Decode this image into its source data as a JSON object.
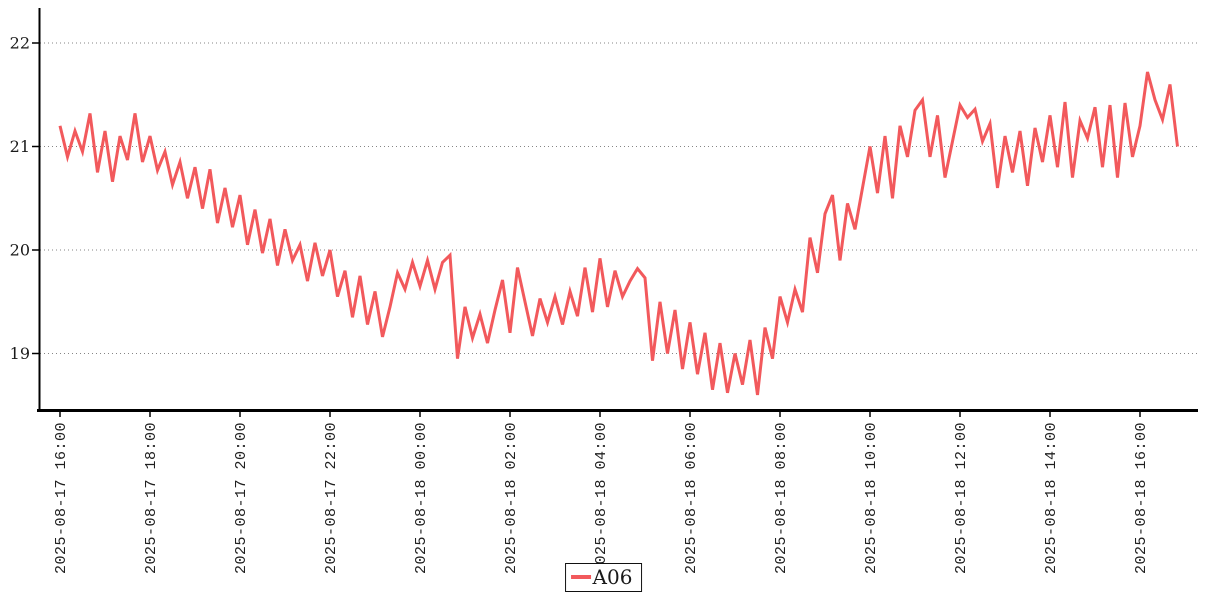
{
  "colors": {
    "line": "#f2595c",
    "grid": "#858585",
    "axis": "#000000",
    "text": "#1a1a1a",
    "background": "#ffffff",
    "legend_border": "#111111"
  },
  "legend": {
    "position": "bottom-center",
    "label": "A06"
  },
  "chart_data": {
    "type": "line",
    "title": "",
    "xlabel": "",
    "ylabel": "",
    "grid": "horizontal-dotted",
    "legend_position": "bottom-center",
    "x_start": "2025-08-17 16:00",
    "x_end": "2025-08-18 16:50",
    "x_interval_minutes": 10,
    "xtick_labels": [
      "2025-08-17 16:00",
      "2025-08-17 18:00",
      "2025-08-17 20:00",
      "2025-08-17 22:00",
      "2025-08-18 00:00",
      "2025-08-18 02:00",
      "2025-08-18 04:00",
      "2025-08-18 06:00",
      "2025-08-18 08:00",
      "2025-08-18 10:00",
      "2025-08-18 12:00",
      "2025-08-18 14:00",
      "2025-08-18 16:00"
    ],
    "yticks": [
      22,
      21,
      20,
      19
    ],
    "ylim": [
      18.44,
      22.35
    ],
    "series": [
      {
        "name": "A06",
        "color": "#f2595c",
        "values": [
          21.2,
          20.9,
          21.15,
          20.95,
          21.32,
          20.75,
          21.15,
          20.66,
          21.1,
          20.87,
          21.32,
          20.85,
          21.1,
          20.77,
          20.95,
          20.63,
          20.85,
          20.5,
          20.8,
          20.4,
          20.78,
          20.26,
          20.6,
          20.22,
          20.53,
          20.05,
          20.39,
          19.97,
          20.3,
          19.85,
          20.2,
          19.9,
          20.05,
          19.7,
          20.07,
          19.75,
          20.0,
          19.55,
          19.8,
          19.35,
          19.75,
          19.28,
          19.6,
          19.16,
          19.45,
          19.78,
          19.62,
          19.88,
          19.65,
          19.9,
          19.62,
          19.88,
          19.95,
          18.95,
          19.45,
          19.15,
          19.38,
          19.1,
          19.42,
          19.71,
          19.2,
          19.83,
          19.5,
          19.17,
          19.53,
          19.3,
          19.55,
          19.28,
          19.6,
          19.36,
          19.83,
          19.4,
          19.92,
          19.45,
          19.8,
          19.55,
          19.7,
          19.82,
          19.73,
          18.93,
          19.5,
          19.0,
          19.42,
          18.85,
          19.3,
          18.8,
          19.2,
          18.65,
          19.1,
          18.62,
          19.0,
          18.7,
          19.13,
          18.6,
          19.25,
          18.95,
          19.55,
          19.3,
          19.62,
          19.4,
          20.12,
          19.78,
          20.35,
          20.53,
          19.9,
          20.45,
          20.2,
          20.6,
          21.0,
          20.55,
          21.1,
          20.5,
          21.2,
          20.9,
          21.35,
          21.45,
          20.9,
          21.3,
          20.7,
          21.05,
          21.4,
          21.28,
          21.36,
          21.05,
          21.22,
          20.6,
          21.1,
          20.75,
          21.15,
          20.62,
          21.18,
          20.85,
          21.3,
          20.8,
          21.43,
          20.7,
          21.25,
          21.08,
          21.38,
          20.8,
          21.4,
          20.7,
          21.42,
          20.9,
          21.2,
          21.72,
          21.45,
          21.26,
          21.6,
          21.0
        ]
      }
    ]
  }
}
